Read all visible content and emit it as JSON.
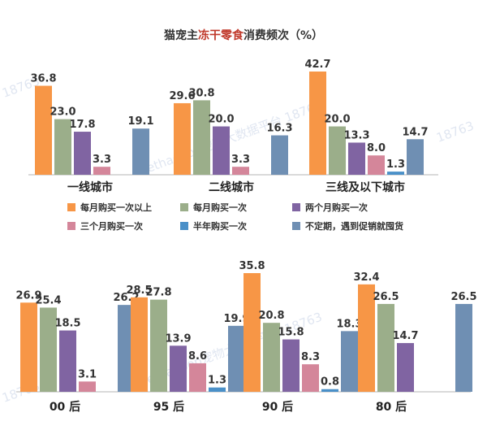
{
  "title": {
    "prefix": "猫宠主",
    "highlight": "冻干零食",
    "suffix": "消费频次（%）"
  },
  "colors": {
    "每月购买一次以上": "#f79646",
    "每月购买一次": "#9bae8a",
    "两个月购买一次": "#8064a2",
    "三个月购买一次": "#d4869a",
    "半年购买一次": "#4a90c8",
    "不定期，遇到促销就囤货": "#6f8fb3"
  },
  "legend": [
    "每月购买一次以上",
    "每月购买一次",
    "两个月购买一次",
    "三个月购买一次",
    "半年购买一次",
    "不定期，遇到促销就囤货"
  ],
  "watermark": [
    "18763",
    "Pethadoop宠物大数据平台 18763"
  ],
  "chart_data": [
    {
      "type": "bar",
      "title": "猫宠主冻干零食消费频次（%）",
      "categories": [
        "一线城市",
        "二线城市",
        "三线及以下城市"
      ],
      "ylim": [
        0,
        45
      ],
      "series": [
        {
          "name": "每月购买一次以上",
          "values": [
            36.8,
            29.6,
            42.7
          ]
        },
        {
          "name": "每月购买一次",
          "values": [
            23.0,
            30.8,
            20.0
          ]
        },
        {
          "name": "两个月购买一次",
          "values": [
            17.8,
            20.0,
            13.3
          ]
        },
        {
          "name": "三个月购买一次",
          "values": [
            3.3,
            3.3,
            8.0
          ]
        },
        {
          "name": "半年购买一次",
          "values": [
            null,
            null,
            1.3
          ]
        },
        {
          "name": "不定期，遇到促销就囤货",
          "values": [
            19.1,
            16.3,
            14.7
          ]
        }
      ]
    },
    {
      "type": "bar",
      "categories": [
        "00 后",
        "95 后",
        "90 后",
        "80 后"
      ],
      "ylim": [
        0,
        38
      ],
      "series": [
        {
          "name": "每月购买一次以上",
          "values": [
            26.9,
            28.5,
            35.8,
            32.4
          ]
        },
        {
          "name": "每月购买一次",
          "values": [
            25.4,
            27.8,
            20.8,
            26.5
          ]
        },
        {
          "name": "两个月购买一次",
          "values": [
            18.5,
            13.9,
            15.8,
            14.7
          ]
        },
        {
          "name": "三个月购买一次",
          "values": [
            3.1,
            8.6,
            8.3,
            null
          ]
        },
        {
          "name": "半年购买一次",
          "values": [
            null,
            1.3,
            0.8,
            null
          ]
        },
        {
          "name": "不定期，遇到促销就囤货",
          "values": [
            26.2,
            19.9,
            18.3,
            26.5
          ]
        }
      ]
    }
  ]
}
